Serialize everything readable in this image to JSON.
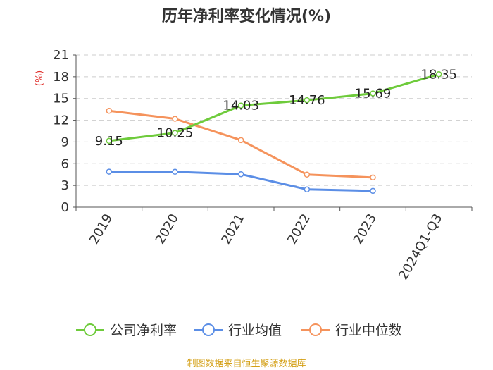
{
  "chart_data": {
    "type": "line",
    "title": "历年净利率变化情况(%)",
    "ylabel": "(%)",
    "categories": [
      "2019",
      "2020",
      "2021",
      "2022",
      "2023",
      "2024Q1-Q3"
    ],
    "ylim": [
      0,
      21
    ],
    "yticks": [
      0,
      3,
      6,
      9,
      12,
      15,
      18,
      21
    ],
    "grid": true,
    "legend": "bottom",
    "series": [
      {
        "name": "公司净利率",
        "color": "#6ecb3b",
        "values": [
          9.15,
          10.25,
          14.03,
          14.76,
          15.69,
          18.35
        ],
        "data_labels": [
          "9.15",
          "10.25",
          "14.03",
          "14.76",
          "15.69",
          "18.35"
        ]
      },
      {
        "name": "行业均值",
        "color": "#5b8ee6",
        "values": [
          4.9,
          4.88,
          4.55,
          2.45,
          2.25,
          null
        ]
      },
      {
        "name": "行业中位数",
        "color": "#f5935c",
        "values": [
          13.3,
          12.2,
          9.25,
          4.5,
          4.1,
          null
        ]
      }
    ],
    "unit_color": "#e0302c"
  },
  "footer": {
    "text": "制图数据来自恒生聚源数据库",
    "color": "#d4a017"
  }
}
